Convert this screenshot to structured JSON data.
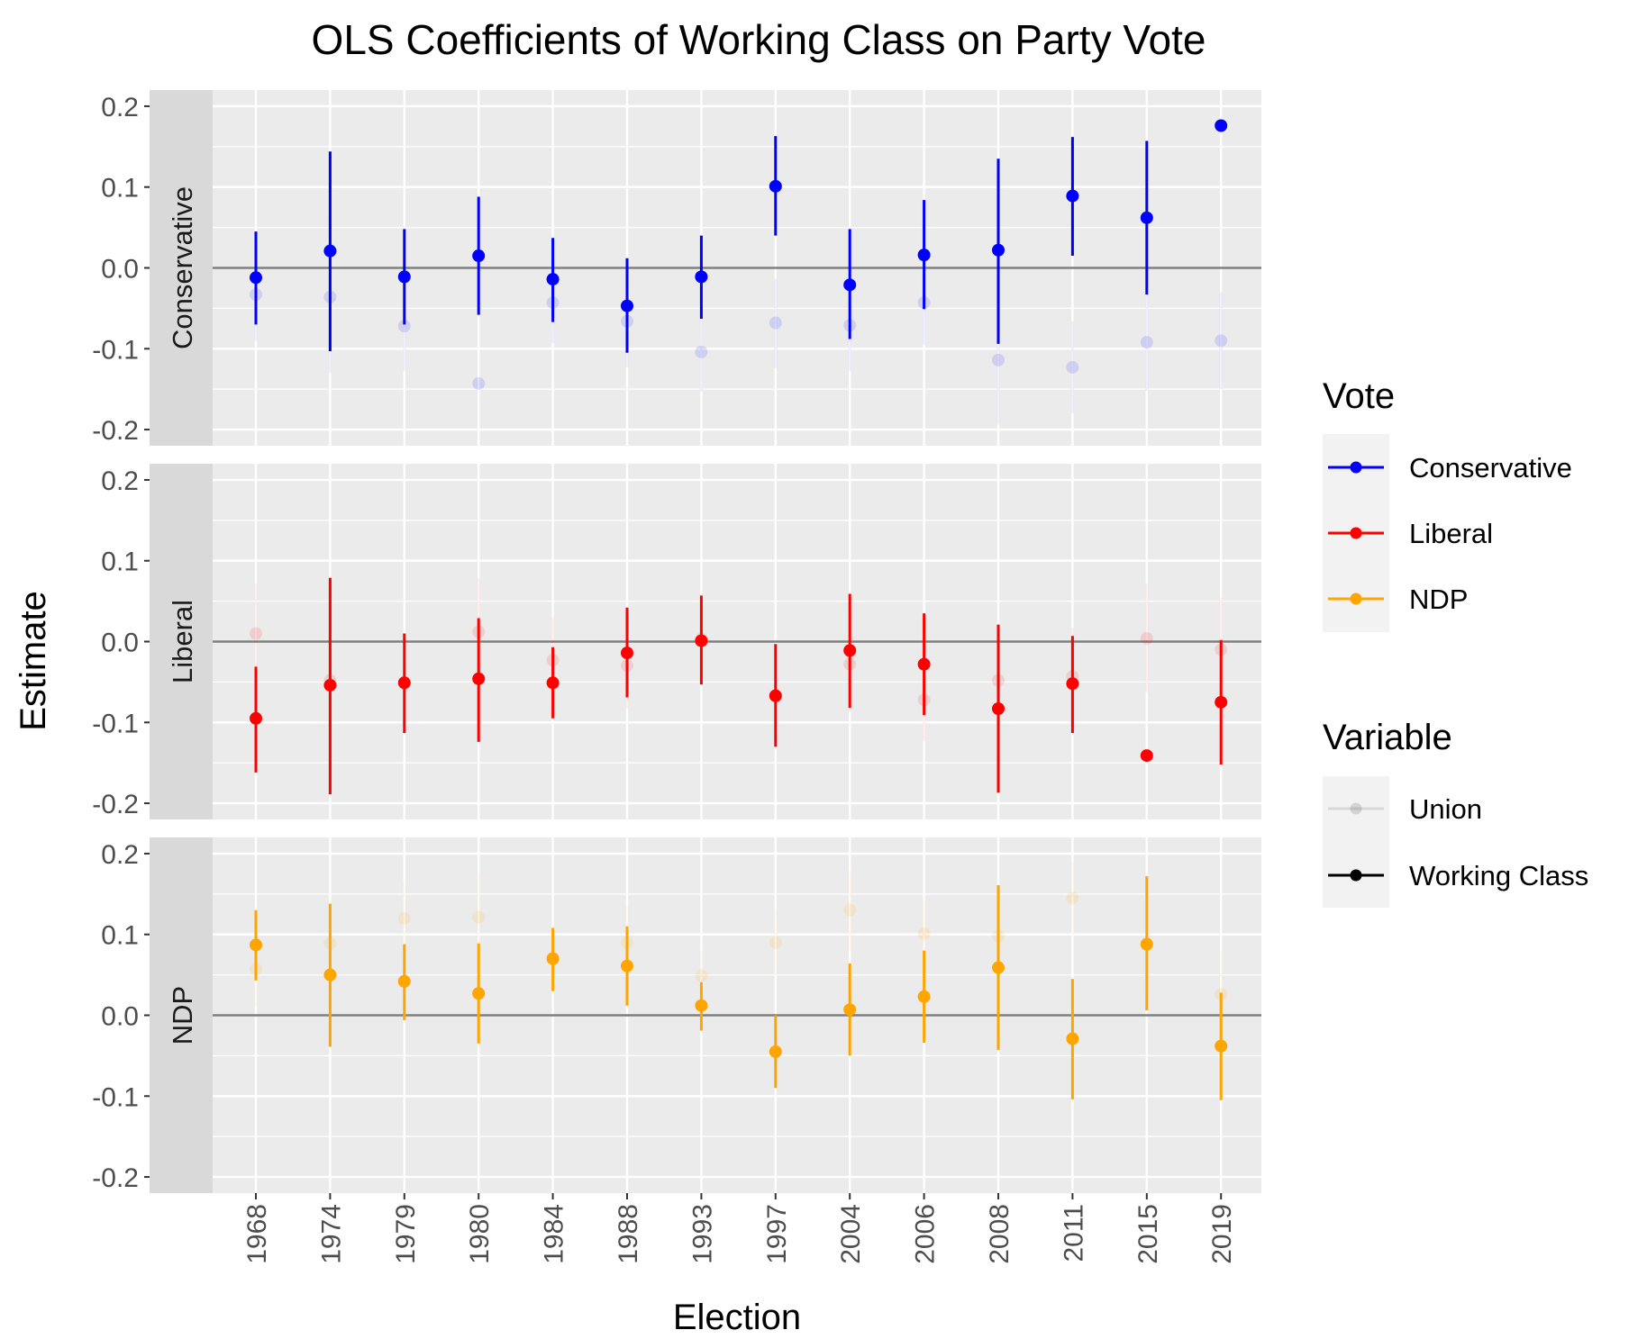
{
  "chart_data": {
    "type": "scatter",
    "title": "OLS Coefficients of Working Class on Party Vote",
    "xlabel": "Election",
    "ylabel": "Estimate",
    "categories": [
      "1968",
      "1974",
      "1979",
      "1980",
      "1984",
      "1988",
      "1993",
      "1997",
      "2004",
      "2006",
      "2008",
      "2011",
      "2015",
      "2019"
    ],
    "ylim": [
      -0.22,
      0.22
    ],
    "yticks": [
      -0.2,
      -0.1,
      0.0,
      0.1,
      0.2
    ],
    "ytick_labels": [
      "-0.2",
      "-0.1",
      "0.0",
      "0.1",
      "0.2"
    ],
    "grid": true,
    "reference_line": 0,
    "legend_position": "right",
    "legends": [
      {
        "title": "Vote",
        "entries": [
          {
            "label": "Conservative",
            "color": "#0000FF"
          },
          {
            "label": "Liberal",
            "color": "#FF0000"
          },
          {
            "label": "NDP",
            "color": "#FFA500"
          }
        ]
      },
      {
        "title": "Variable",
        "entries": [
          {
            "label": "Union",
            "color": "#BEBEBE",
            "faded": true
          },
          {
            "label": "Working Class",
            "color": "#000000",
            "faded": false
          }
        ]
      }
    ],
    "panels": [
      {
        "label": "Conservative",
        "color": "#0000FF",
        "series": [
          {
            "name": "Working Class",
            "estimates": [
              -0.012,
              0.021,
              -0.011,
              0.015,
              -0.014,
              -0.047,
              -0.011,
              0.101,
              -0.021,
              0.016,
              0.022,
              0.089,
              0.062,
              0.176
            ],
            "lower": [
              -0.07,
              -0.103,
              -0.07,
              -0.058,
              -0.067,
              -0.105,
              -0.063,
              0.04,
              -0.088,
              -0.051,
              -0.094,
              0.015,
              -0.033,
              null
            ],
            "upper": [
              0.045,
              0.144,
              0.048,
              0.088,
              0.037,
              0.012,
              0.04,
              0.163,
              0.048,
              0.084,
              0.135,
              0.162,
              0.157,
              null
            ]
          },
          {
            "name": "Union",
            "estimates": [
              -0.033,
              -0.036,
              -0.072,
              -0.143,
              -0.043,
              -0.066,
              -0.104,
              -0.068,
              -0.071,
              -0.043,
              -0.114,
              -0.123,
              -0.092,
              -0.09
            ],
            "lower": [
              -0.09,
              -0.13,
              -0.128,
              null,
              -0.093,
              -0.123,
              -0.153,
              -0.124,
              -0.128,
              -0.095,
              -0.194,
              -0.18,
              -0.152,
              -0.15
            ],
            "upper": [
              0.02,
              0.058,
              -0.018,
              null,
              0.007,
              -0.011,
              -0.055,
              -0.013,
              -0.015,
              0.01,
              -0.036,
              -0.066,
              -0.032,
              -0.03
            ]
          }
        ]
      },
      {
        "label": "Liberal",
        "color": "#FF0000",
        "series": [
          {
            "name": "Working Class",
            "estimates": [
              -0.095,
              -0.054,
              -0.051,
              -0.046,
              -0.051,
              -0.014,
              0.001,
              -0.067,
              -0.011,
              -0.028,
              -0.083,
              -0.052,
              -0.141,
              -0.075
            ],
            "lower": [
              -0.162,
              -0.189,
              -0.113,
              -0.124,
              -0.095,
              -0.069,
              -0.053,
              -0.13,
              -0.082,
              -0.091,
              -0.187,
              -0.113,
              null,
              -0.152
            ],
            "upper": [
              -0.031,
              0.079,
              0.01,
              0.029,
              -0.007,
              0.042,
              0.057,
              -0.003,
              0.059,
              0.035,
              0.021,
              0.007,
              null,
              0.002
            ]
          },
          {
            "name": "Union",
            "estimates": [
              0.01,
              -0.048,
              -0.05,
              0.012,
              -0.023,
              -0.03,
              0.003,
              -0.068,
              -0.028,
              -0.072,
              -0.048,
              -0.043,
              0.004,
              -0.01
            ],
            "lower": [
              -0.052,
              -0.105,
              -0.105,
              -0.05,
              -0.075,
              -0.083,
              -0.055,
              -0.125,
              -0.087,
              -0.123,
              -0.11,
              -0.103,
              -0.063,
              -0.075
            ],
            "upper": [
              0.072,
              0.01,
              0.005,
              0.078,
              0.03,
              0.02,
              0.06,
              -0.01,
              0.03,
              -0.02,
              0.015,
              0.017,
              0.072,
              0.055
            ]
          }
        ]
      },
      {
        "label": "NDP",
        "color": "#FFA500",
        "series": [
          {
            "name": "Working Class",
            "estimates": [
              0.087,
              0.05,
              0.042,
              0.027,
              0.07,
              0.061,
              0.012,
              -0.045,
              0.007,
              0.023,
              0.059,
              -0.029,
              0.088,
              -0.038
            ],
            "lower": [
              0.043,
              -0.039,
              -0.006,
              -0.035,
              0.03,
              0.012,
              -0.019,
              -0.09,
              -0.05,
              -0.034,
              -0.043,
              -0.104,
              0.006,
              -0.105
            ],
            "upper": [
              0.13,
              0.138,
              0.088,
              0.089,
              0.108,
              0.11,
              0.041,
              0.0,
              0.064,
              0.08,
              0.161,
              0.045,
              0.172,
              0.028
            ]
          },
          {
            "name": "Union",
            "estimates": [
              0.057,
              0.089,
              0.12,
              0.121,
              0.071,
              0.09,
              0.049,
              0.09,
              0.13,
              0.101,
              0.098,
              0.145,
              0.087,
              0.026
            ],
            "lower": [
              0.01,
              0.035,
              0.075,
              0.07,
              0.03,
              0.045,
              0.02,
              0.05,
              0.08,
              0.06,
              0.04,
              0.1,
              0.03,
              -0.025
            ],
            "upper": [
              0.105,
              0.143,
              0.165,
              0.175,
              0.112,
              0.135,
              0.08,
              0.13,
              0.18,
              0.142,
              0.155,
              0.19,
              0.145,
              0.08
            ]
          }
        ]
      }
    ]
  }
}
